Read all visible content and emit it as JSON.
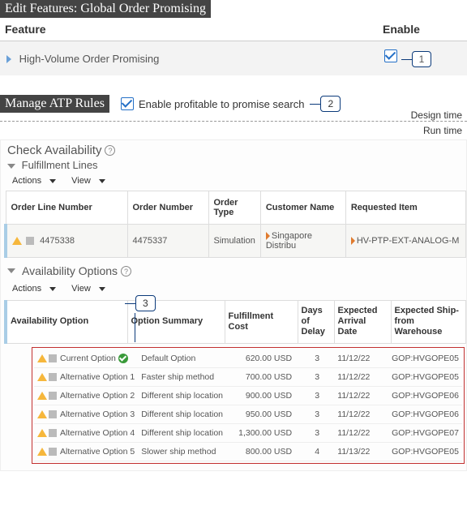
{
  "editFeatures": {
    "title": "Edit Features: Global Order Promising",
    "col_feature": "Feature",
    "col_enable": "Enable",
    "row_label": "High-Volume Order Promising",
    "callout1": "1"
  },
  "atp": {
    "title": "Manage ATP Rules",
    "enable_label": "Enable profitable to promise search",
    "callout2": "2",
    "design_time": "Design time",
    "run_time": "Run time"
  },
  "check": {
    "title": "Check Availability",
    "fulfillment_lines": "Fulfillment Lines",
    "actions": "Actions",
    "view": "View",
    "headers": {
      "order_line_number": "Order Line Number",
      "order_number": "Order Number",
      "order_type": "Order Type",
      "customer_name": "Customer Name",
      "requested_item": "Requested Item"
    },
    "row": {
      "order_line_number": "4475338",
      "order_number": "4475337",
      "order_type": "Simulation",
      "customer_name": "Singapore Distribu",
      "requested_item": "HV-PTP-EXT-ANALOG-M"
    }
  },
  "availability": {
    "title": "Availability Options",
    "callout3": "3",
    "headers": {
      "option": "Availability Option",
      "summary": "Option Summary",
      "cost": "Fulfillment Cost",
      "delay": "Days of Delay",
      "arrival": "Expected Arrival Date",
      "warehouse": "Expected Ship-from Warehouse"
    },
    "rows": [
      {
        "option": "Current Option",
        "current": true,
        "summary": "Default Option",
        "cost": "620.00 USD",
        "delay": "3",
        "arrival": "11/12/22",
        "warehouse": "GOP:HVGOPE05"
      },
      {
        "option": "Alternative Option 1",
        "current": false,
        "summary": "Faster ship method",
        "cost": "700.00 USD",
        "delay": "3",
        "arrival": "11/12/22",
        "warehouse": "GOP:HVGOPE05"
      },
      {
        "option": "Alternative Option 2",
        "current": false,
        "summary": "Different ship location",
        "cost": "900.00 USD",
        "delay": "3",
        "arrival": "11/12/22",
        "warehouse": "GOP:HVGOPE06"
      },
      {
        "option": "Alternative Option 3",
        "current": false,
        "summary": "Different ship location",
        "cost": "950.00 USD",
        "delay": "3",
        "arrival": "11/12/22",
        "warehouse": "GOP:HVGOPE06"
      },
      {
        "option": "Alternative Option 4",
        "current": false,
        "summary": "Different ship location",
        "cost": "1,300.00 USD",
        "delay": "3",
        "arrival": "11/12/22",
        "warehouse": "GOP:HVGOPE07"
      },
      {
        "option": "Alternative Option 5",
        "current": false,
        "summary": "Slower ship method",
        "cost": "800.00 USD",
        "delay": "4",
        "arrival": "11/13/22",
        "warehouse": "GOP:HVGOPE05"
      }
    ]
  }
}
